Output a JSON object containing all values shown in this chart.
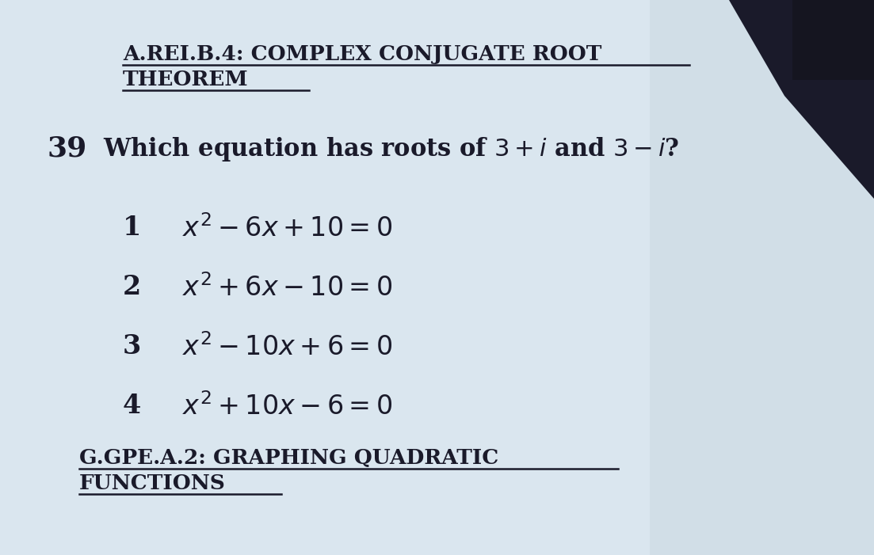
{
  "bg_color": "#ccd9e3",
  "bg_light": "#dae6ef",
  "corner_color": "#2a2a3a",
  "text_color": "#1a1a2a",
  "title1_line1": "A.REI.B.4: COMPLEX CONJUGATE ROOT",
  "title1_line2": "THEOREM",
  "question_num": "39",
  "question_eq": "Which equation has roots of $3+i$ and $3-i$?",
  "choices": [
    {
      "num": "1",
      "eq": "$x^2-6x+10=0$"
    },
    {
      "num": "2",
      "eq": "$x^2+6x-10=0$"
    },
    {
      "num": "3",
      "eq": "$x^2-10x+6=0$"
    },
    {
      "num": "4",
      "eq": "$x^2+10x-6=0$"
    }
  ],
  "title2_line1": "G.GPE.A.2: GRAPHING QUADRATIC",
  "title2_line2": "FUNCTIONS",
  "title1_fontsize": 19,
  "question_num_fontsize": 26,
  "question_fontsize": 22,
  "choice_num_fontsize": 24,
  "choice_eq_fontsize": 24,
  "title2_fontsize": 19
}
